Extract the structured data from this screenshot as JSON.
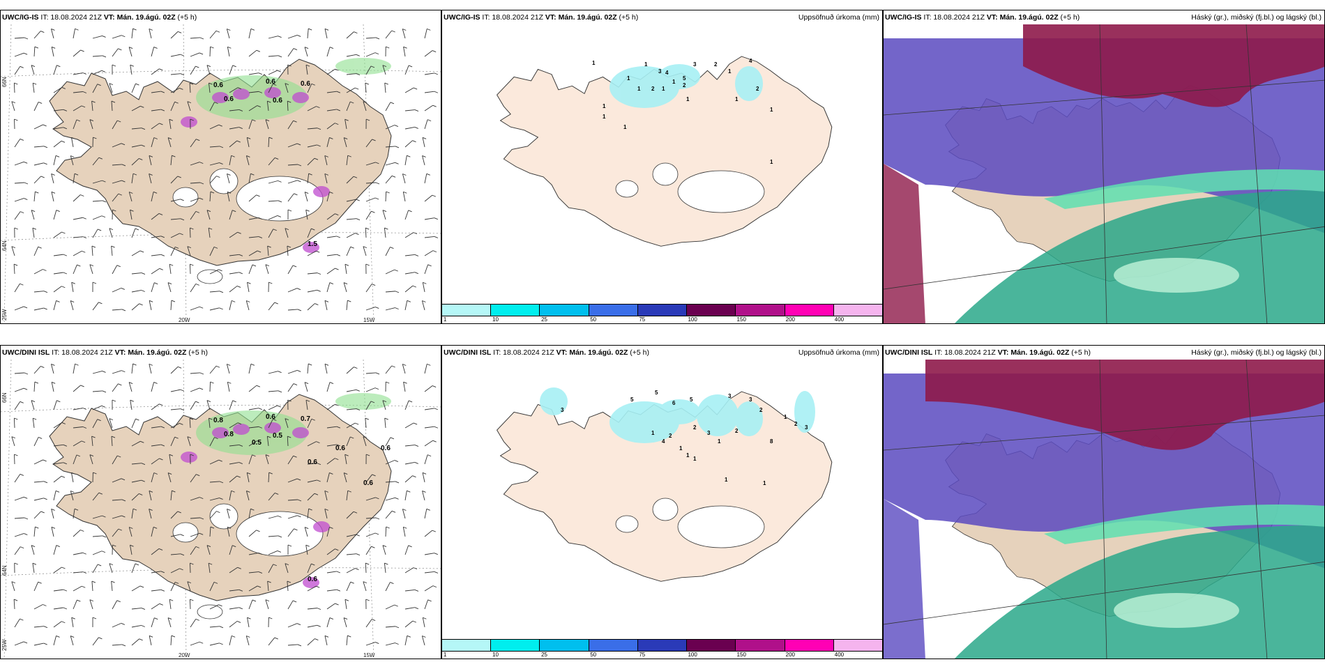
{
  "panels": [
    {
      "id": "p1",
      "model": "UWC/IG-IS",
      "it": "IT: 18.08.2024 21Z",
      "vt": "VT: Mán. 19.ágú. 02Z",
      "offset": "(+5 h)",
      "right": ""
    },
    {
      "id": "p2",
      "model": "UWC/IG-IS",
      "it": "IT: 18.08.2024 21Z",
      "vt": "VT: Mán. 19.ágú. 02Z",
      "offset": "(+5 h)",
      "right": "Uppsöfnuð úrkoma (mm)"
    },
    {
      "id": "p3",
      "model": "UWC/IG-IS",
      "it": "IT: 18.08.2024 21Z",
      "vt": "VT: Mán. 19.ágú. 02Z",
      "offset": "(+5 h)",
      "right": "Háský (gr.), miðský (fj.bl.) og lágský (bl.)"
    },
    {
      "id": "p4",
      "model": "UWC/DINI ISL",
      "it": "IT: 18.08.2024 21Z",
      "vt": "VT: Mán. 19.ágú. 02Z",
      "offset": "(+5 h)",
      "right": ""
    },
    {
      "id": "p5",
      "model": "UWC/DINI ISL",
      "it": "IT: 18.08.2024 21Z",
      "vt": "VT: Mán. 19.ágú. 02Z",
      "offset": "(+5 h)",
      "right": "Uppsöfnuð úrkoma (mm)"
    },
    {
      "id": "p6",
      "model": "UWC/DINI ISL",
      "it": "IT: 18.08.2024 21Z",
      "vt": "VT: Mán. 19.ágú. 02Z",
      "offset": "(+5 h)",
      "right": "Háský (gr.), miðský (fj.bl.) og lágský (bl.)"
    }
  ],
  "axes": {
    "lat66": "66N",
    "lat64": "64N",
    "lon25": "25W",
    "lon20": "20W",
    "lon15": "15W"
  },
  "colorbar": {
    "ticks": [
      "1",
      "10",
      "25",
      "50",
      "75",
      "100",
      "150",
      "200",
      "400"
    ],
    "colors": [
      "#b5f7f7",
      "#00eeee",
      "#00bfee",
      "#3a6ee8",
      "#2a3ab8",
      "#6a0050",
      "#b0108a",
      "#ff00b4",
      "#f5b4ee"
    ]
  },
  "precip_labels_top": [
    "1",
    "1",
    "3",
    "4",
    "5",
    "3",
    "2",
    "1",
    "4",
    "2",
    "1",
    "1",
    "2",
    "1",
    "1",
    "2",
    "1",
    "1",
    "1",
    "1",
    "1",
    "1",
    "1"
  ],
  "precip_labels_bottom": [
    "3",
    "5",
    "5",
    "6",
    "5",
    "3",
    "3",
    "1",
    "2",
    "2",
    "1",
    "4",
    "2",
    "3",
    "2",
    "1",
    "8",
    "2",
    "3",
    "1",
    "1",
    "1",
    "1",
    "1"
  ],
  "wind_labels_top": [
    "0.6",
    "0.6",
    "0.6",
    "0.6",
    "0.6",
    "1.5"
  ],
  "wind_labels_bottom": [
    "0.8",
    "0.6",
    "0.7",
    "0.8",
    "0.5",
    "0.6",
    "0.5",
    "0.6",
    "0.6",
    "0.6",
    "0.6"
  ],
  "colors": {
    "land": "#e6d2bc",
    "land_light": "#fbe9dc",
    "high": "#8e1a4a",
    "mid": "#5a4ac0",
    "low": "#2aa88a",
    "lowlight": "#5ee0b0"
  }
}
